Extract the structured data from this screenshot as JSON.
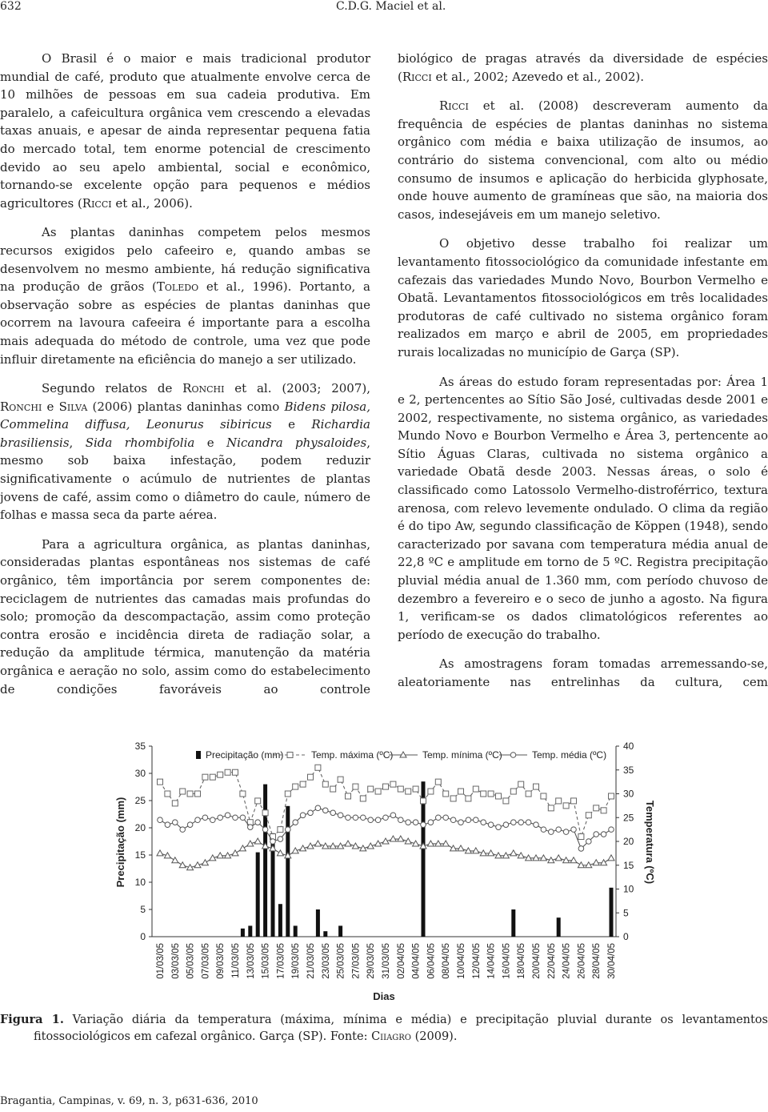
{
  "header": {
    "page_number": "632",
    "running_head": "C.D.G. Maciel et al."
  },
  "left_column": [
    [
      "O Brasil é o maior e mais tradicional produtor mundial de café, produto que atualmente envolve cerca de 10 milhões de pessoas em sua cadeia produtiva. Em paralelo, a cafeicultura orgânica vem crescendo a elevadas taxas anuais, e apesar de ainda representar pequena fatia do mercado total, tem enorme potencial de crescimento devido ao seu apelo ambiental, social e econômico, tornando-se excelente opção para pequenos e médios agricultores (",
      {
        "text": "Ricci",
        "style": "small-caps"
      },
      " et al., 2006)."
    ],
    [
      "As plantas daninhas competem pelos mesmos recursos exigidos pelo cafeeiro e, quando ambas se desenvolvem no mesmo ambiente, há redução significativa na produção de grãos (",
      {
        "text": "Toledo",
        "style": "small-caps"
      },
      " et al., 1996). Portanto, a observação sobre as espécies de plantas daninhas que ocorrem na lavoura cafeeira é importante para a escolha mais adequada do método de controle, uma vez que pode influir diretamente na eficiência do manejo a ser utilizado."
    ],
    [
      "Segundo relatos de ",
      {
        "text": "Ronchi",
        "style": "small-caps"
      },
      " et al. (2003; 2007), ",
      {
        "text": "Ronchi",
        "style": "small-caps"
      },
      " e ",
      {
        "text": "Silva",
        "style": "small-caps"
      },
      " (2006) plantas daninhas como ",
      {
        "text": "Bidens pilosa, Commelina diffusa, Leonurus sibiricus",
        "style": "italic"
      },
      " e ",
      {
        "text": "Richardia brasiliensis",
        "style": "italic"
      },
      ", ",
      {
        "text": "Sida rhombifolia",
        "style": "italic"
      },
      " e ",
      {
        "text": "Nicandra physaloides",
        "style": "italic"
      },
      ", mesmo sob baixa infestação, podem reduzir significativamente o acúmulo de nutrientes de plantas jovens de café, assim como o diâmetro do caule, número de folhas e massa seca da parte aérea."
    ],
    [
      "Para a agricultura orgânica, as plantas daninhas, consideradas plantas espontâneas nos sistemas de café orgânico, têm importância por serem componentes de: reciclagem de nutrientes das camadas mais profundas do solo; promoção da descompactação, assim como proteção contra erosão e incidência direta de radiação solar, a redução da amplitude térmica, manutenção da matéria orgânica e aeração no solo, assim como do estabelecimento de condições favoráveis ao controle"
    ]
  ],
  "right_column": [
    [
      "biológico de pragas através da diversidade de espécies (",
      {
        "text": "Ricci",
        "style": "small-caps"
      },
      " et al., 2002; Azevedo et al., 2002)."
    ],
    [
      {
        "text": "Ricci",
        "style": "small-caps"
      },
      " et al. (2008) descreveram aumento da frequência de espécies de plantas daninhas no sistema orgânico com média e baixa utilização de insumos, ao contrário do sistema convencional, com alto ou médio consumo de insumos e aplicação do herbicida glyphosate, onde houve aumento de gramíneas que são, na maioria dos casos, indesejáveis em um manejo seletivo."
    ],
    [
      "O objetivo desse trabalho foi realizar um levantamento fitossociológico da comunidade infestante em cafezais das variedades Mundo Novo, Bourbon Vermelho e Obatã. Levantamentos fitossociológicos em três localidades produtoras de café cultivado no sistema orgânico foram realizados em março e abril de 2005, em propriedades rurais localizadas no município de Garça (SP)."
    ],
    [
      "As áreas do estudo foram representadas por: Área 1 e 2, pertencentes ao Sítio São José, cultivadas desde 2001 e 2002, respectivamente, no sistema orgânico, as variedades Mundo Novo e Bourbon Vermelho e Área 3, pertencente ao Sítio Águas Claras, cultivada no sistema orgânico a variedade Obatã desde 2003. Nessas áreas, o solo é classificado como Latossolo Vermelho-distroférrico, textura arenosa, com relevo levemente ondulado. O clima da região é do tipo Aw, segundo classificação de Köppen (1948), sendo caracterizado por savana com temperatura média anual de 22,8 ºC e amplitude em torno de 5 ºC. Registra precipitação pluvial média anual de 1.360 mm, com período chuvoso de dezembro a fevereiro e o seco de junho a agosto. Na figura 1, verificam-se os dados climatológicos referentes ao período de execução do trabalho."
    ],
    [
      "As amostragens foram tomadas arremessando-se, aleatoriamente nas entrelinhas da cultura, cem"
    ]
  ],
  "chart_data": {
    "type": "bar-line",
    "ylabel": "Precipitação (mm)",
    "y2label": "Temperatura (ºC)",
    "xlabel": "Dias",
    "categories": [
      "01/03/05",
      null,
      "03/03/05",
      null,
      "05/03/05",
      null,
      "07/03/05",
      null,
      "09/03/05",
      null,
      "11/03/05",
      null,
      "13/03/05",
      null,
      "15/03/05",
      null,
      "17/03/05",
      null,
      "19/03/05",
      null,
      "21/03/05",
      null,
      "23/03/05",
      null,
      "25/03/05",
      null,
      "27/03/05",
      null,
      "29/03/05",
      null,
      "31/03/05",
      null,
      "02/04/05",
      null,
      "04/04/05",
      null,
      "06/04/05",
      null,
      "08/04/05",
      null,
      "10/04/05",
      null,
      "12/04/05",
      null,
      "14/04/05",
      null,
      "16/04/05",
      null,
      "18/04/05",
      null,
      "20/04/05",
      null,
      "22/04/05",
      null,
      "24/04/05",
      null,
      "26/04/05",
      null,
      "28/04/05",
      null,
      "30/04/05"
    ],
    "ylim": [
      0,
      35
    ],
    "yticks": [
      0,
      5,
      10,
      15,
      20,
      25,
      30,
      35
    ],
    "y2lim": [
      0,
      40
    ],
    "y2ticks": [
      0,
      5,
      10,
      15,
      20,
      25,
      30,
      35,
      40
    ],
    "series": [
      {
        "name": "Precipitação (mm)",
        "type": "bar",
        "color": "#111111",
        "axis": "y",
        "values": [
          0,
          0,
          0,
          0,
          0,
          0,
          0,
          0,
          0,
          0,
          0,
          1.5,
          2,
          15.5,
          28,
          19,
          6,
          24,
          2,
          0,
          0,
          5,
          1,
          0,
          2,
          0,
          0,
          0,
          0,
          0,
          0,
          0,
          0,
          0,
          0,
          28.5,
          0,
          0,
          0,
          0,
          0,
          0,
          0,
          0,
          0,
          0,
          0,
          5,
          0,
          0,
          0,
          0,
          0,
          3.5,
          0,
          0,
          0,
          0,
          0,
          0,
          9
        ]
      },
      {
        "name": "Temp. máxima (ºC)",
        "type": "line",
        "color": "#666666",
        "marker": "square",
        "dashed": true,
        "axis": "y2",
        "values": [
          32.5,
          30,
          28,
          30.5,
          30,
          30,
          33.5,
          33.5,
          34,
          34.5,
          34.5,
          30,
          24,
          28.5,
          26,
          21,
          22.5,
          30,
          31.5,
          32,
          33.5,
          35.5,
          32,
          31,
          33,
          29.5,
          31.5,
          29,
          31,
          30.5,
          31.5,
          32,
          31,
          30.5,
          31,
          28.5,
          30.5,
          32.5,
          30,
          29,
          30.5,
          29,
          31,
          30,
          30,
          29.5,
          28.5,
          30.5,
          32,
          30,
          31.5,
          29.5,
          27,
          28.5,
          27.5,
          28.5,
          21,
          25.5,
          27,
          26.5,
          29.5
        ]
      },
      {
        "name": "Temp. mínima (ºC)",
        "type": "line",
        "color": "#555555",
        "marker": "triangle",
        "dashed": false,
        "axis": "y2",
        "values": [
          17.5,
          17,
          16,
          15,
          14.5,
          15,
          15.5,
          16.5,
          17,
          17,
          17.5,
          18.5,
          19.5,
          20,
          19,
          18.5,
          17.5,
          17,
          18,
          18.5,
          19,
          19.5,
          19,
          19,
          19,
          19.5,
          19,
          18.5,
          19,
          19.5,
          20,
          20.5,
          20.5,
          20,
          19.5,
          19,
          19.5,
          19.5,
          19.5,
          18.5,
          18.5,
          18,
          18,
          17.5,
          17.5,
          17,
          17,
          17.5,
          17,
          16.5,
          16.5,
          16.5,
          16,
          16.5,
          16,
          16,
          15,
          15,
          15.5,
          15.5,
          16.5
        ]
      },
      {
        "name": "Temp. média (ºC)",
        "type": "line",
        "color": "#555555",
        "marker": "circle",
        "dashed": false,
        "axis": "y2",
        "values": [
          24.5,
          23.5,
          24,
          22.5,
          23.5,
          24.5,
          25,
          24.5,
          25,
          25.5,
          25,
          25,
          23,
          24,
          22.5,
          20,
          20.5,
          22.5,
          24,
          25.5,
          26,
          27,
          26.5,
          26,
          25.5,
          25,
          25,
          25,
          24.5,
          24.5,
          25,
          25.5,
          24.5,
          24,
          24,
          23.5,
          24,
          25,
          25,
          24.5,
          24,
          24.5,
          24.5,
          24,
          23.5,
          23,
          23.5,
          24,
          24,
          24,
          23.5,
          22.5,
          22,
          22.5,
          22,
          22.5,
          18.5,
          20,
          21.5,
          21.5,
          22.5
        ]
      }
    ]
  },
  "caption": [
    {
      "text": "Figura 1.",
      "style": "bold"
    },
    " Variação diária da temperatura (máxima, mínima e média) e precipitação pluvial durante os levantamentos fitossociológicos em cafezal orgânico. Garça (SP). Fonte: ",
    {
      "text": "Ciiagro",
      "style": "small-caps"
    },
    " (2009)."
  ],
  "footer": "Bragantia, Campinas, v. 69, n. 3, p631-636, 2010"
}
